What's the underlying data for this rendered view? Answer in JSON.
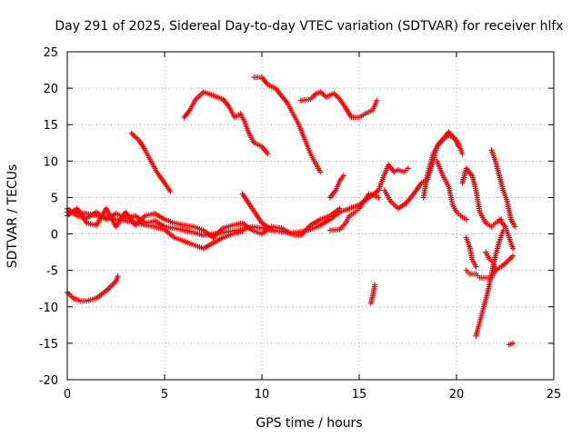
{
  "chart_data": {
    "type": "scatter",
    "title": "Day 291 of 2025, Sidereal Day-to-day VTEC variation (SDTVAR) for receiver hlfx",
    "xlabel": "GPS time / hours",
    "ylabel": "SDTVAR / TECUs",
    "xlim": [
      0,
      25
    ],
    "ylim": [
      -20,
      25
    ],
    "xticks": [
      0,
      5,
      10,
      15,
      20,
      25
    ],
    "yticks": [
      -20,
      -15,
      -10,
      -5,
      0,
      5,
      10,
      15,
      20,
      25
    ],
    "grid": true,
    "marker": "+",
    "color": "#ff0000",
    "series": [
      {
        "points": [
          [
            0,
            3.5
          ],
          [
            0.5,
            2.5
          ],
          [
            1,
            2.2
          ],
          [
            1.5,
            3
          ],
          [
            2,
            2
          ],
          [
            2.5,
            2.8
          ],
          [
            3,
            2.2
          ],
          [
            3.5,
            2.5
          ],
          [
            4,
            1.5
          ],
          [
            4.5,
            1.8
          ],
          [
            5,
            1
          ],
          [
            5.5,
            0.8
          ],
          [
            6,
            0.5
          ],
          [
            6.5,
            0.2
          ],
          [
            7,
            -0.2
          ],
          [
            7.5,
            0
          ],
          [
            8,
            0.2
          ],
          [
            8.5,
            0.4
          ],
          [
            9,
            0.6
          ],
          [
            9.5,
            1
          ],
          [
            10,
            0.8
          ],
          [
            10.5,
            0.5
          ],
          [
            11,
            0.3
          ],
          [
            11.5,
            0.1
          ],
          [
            12,
            0.3
          ],
          [
            12.5,
            0.6
          ],
          [
            13,
            1.2
          ],
          [
            13.5,
            2
          ],
          [
            14,
            3
          ],
          [
            14.5,
            3.5
          ],
          [
            15,
            4
          ],
          [
            15.5,
            5
          ],
          [
            16,
            6
          ]
        ]
      },
      {
        "points": [
          [
            0,
            2.5
          ],
          [
            0.5,
            3.5
          ],
          [
            1,
            1.5
          ],
          [
            1.5,
            1.2
          ],
          [
            2,
            3.5
          ],
          [
            2.5,
            1
          ],
          [
            3,
            3
          ],
          [
            3.5,
            1.2
          ],
          [
            4,
            2.5
          ],
          [
            4.5,
            2.8
          ],
          [
            5,
            2
          ],
          [
            5.5,
            1.5
          ],
          [
            6,
            1.2
          ],
          [
            6.5,
            1
          ],
          [
            7,
            0.5
          ],
          [
            7.5,
            -0.5
          ],
          [
            8,
            0.8
          ],
          [
            8.5,
            1.2
          ],
          [
            9,
            1.5
          ],
          [
            9.5,
            0.5
          ],
          [
            10,
            0
          ],
          [
            10.5,
            1
          ],
          [
            11,
            0.8
          ],
          [
            11.5,
            0
          ],
          [
            12,
            -0.2
          ],
          [
            12.5,
            1.2
          ],
          [
            13,
            2
          ],
          [
            13.5,
            2.5
          ],
          [
            14,
            3.5
          ]
        ]
      },
      {
        "points": [
          [
            0,
            3
          ],
          [
            0.5,
            3
          ],
          [
            1,
            2.8
          ],
          [
            1.5,
            2.5
          ],
          [
            2,
            2.3
          ],
          [
            2.5,
            2
          ],
          [
            3,
            1.8
          ],
          [
            3.5,
            1.6
          ],
          [
            4,
            1.2
          ],
          [
            4.5,
            1
          ],
          [
            5,
            0.6
          ],
          [
            5.5,
            -0.5
          ],
          [
            6,
            -1
          ],
          [
            6.5,
            -1.5
          ],
          [
            7,
            -2
          ],
          [
            7.5,
            -1.2
          ],
          [
            8,
            -0.5
          ],
          [
            8.5,
            0
          ],
          [
            9,
            0.4
          ]
        ]
      },
      {
        "points": [
          [
            0,
            -8
          ],
          [
            0.3,
            -8.8
          ],
          [
            0.7,
            -9.2
          ],
          [
            1,
            -9.2
          ],
          [
            1.5,
            -8.8
          ],
          [
            2,
            -7.8
          ],
          [
            2.5,
            -6.5
          ],
          [
            2.6,
            -5.8
          ]
        ]
      },
      {
        "points": [
          [
            3.3,
            13.8
          ],
          [
            3.7,
            12.8
          ],
          [
            4,
            11.5
          ],
          [
            4.3,
            10
          ],
          [
            4.6,
            8.5
          ],
          [
            5,
            7
          ],
          [
            5.3,
            5.8
          ]
        ]
      },
      {
        "points": [
          [
            6,
            16
          ],
          [
            6.3,
            17
          ],
          [
            6.6,
            18.5
          ],
          [
            7,
            19.5
          ],
          [
            7.5,
            19
          ],
          [
            8,
            18.5
          ],
          [
            8.3,
            17.5
          ],
          [
            8.6,
            16
          ],
          [
            8.9,
            16.5
          ],
          [
            9.1,
            15.5
          ],
          [
            9.3,
            14
          ],
          [
            9.6,
            12.5
          ],
          [
            10,
            12
          ],
          [
            10.3,
            11
          ]
        ]
      },
      {
        "points": [
          [
            9.6,
            21.5
          ],
          [
            10,
            21.5
          ],
          [
            10.3,
            20.5
          ],
          [
            10.7,
            20
          ],
          [
            11,
            19
          ],
          [
            11.3,
            18
          ],
          [
            11.6,
            16.5
          ],
          [
            11.9,
            15
          ],
          [
            12.2,
            13
          ],
          [
            12.5,
            11
          ],
          [
            12.8,
            9.5
          ],
          [
            13,
            8.5
          ]
        ]
      },
      {
        "points": [
          [
            12,
            18.3
          ],
          [
            12.5,
            18.5
          ],
          [
            12.8,
            19.3
          ],
          [
            13,
            19.5
          ],
          [
            13.3,
            18.8
          ],
          [
            13.7,
            19.3
          ],
          [
            14,
            18.5
          ],
          [
            14.3,
            17.3
          ],
          [
            14.6,
            16
          ],
          [
            15,
            16
          ],
          [
            15.3,
            16.5
          ],
          [
            15.7,
            17
          ],
          [
            15.9,
            18.3
          ]
        ]
      },
      {
        "points": [
          [
            9,
            5.5
          ],
          [
            9.5,
            3.5
          ],
          [
            10,
            1.5
          ],
          [
            10.5,
            0.6
          ]
        ]
      },
      {
        "points": [
          [
            13.5,
            0.5
          ],
          [
            14,
            0.6
          ],
          [
            14.3,
            1.5
          ],
          [
            14.5,
            2.5
          ],
          [
            14.8,
            3
          ],
          [
            15,
            3.5
          ],
          [
            15.5,
            5.5
          ],
          [
            16,
            5
          ]
        ]
      },
      {
        "points": [
          [
            13.5,
            5
          ],
          [
            13.8,
            6
          ],
          [
            14,
            7.3
          ],
          [
            14.2,
            8
          ]
        ]
      },
      {
        "points": [
          [
            15.6,
            -9.5
          ],
          [
            15.7,
            -8.5
          ],
          [
            15.8,
            -7
          ]
        ]
      },
      {
        "points": [
          [
            16,
            6
          ],
          [
            16.2,
            7.5
          ],
          [
            16.5,
            9.5
          ],
          [
            16.8,
            8.5
          ],
          [
            17,
            8.8
          ],
          [
            17.3,
            8.5
          ],
          [
            17.5,
            9
          ]
        ]
      },
      {
        "points": [
          [
            16.3,
            6
          ],
          [
            16.6,
            4.5
          ],
          [
            17,
            3.5
          ],
          [
            17.4,
            4.2
          ],
          [
            17.8,
            5.5
          ],
          [
            18.2,
            7
          ],
          [
            18.5,
            7.5
          ],
          [
            18.8,
            10
          ],
          [
            19,
            12
          ],
          [
            19.3,
            13
          ],
          [
            19.6,
            14
          ],
          [
            19.9,
            13
          ],
          [
            20.1,
            12.5
          ],
          [
            20.3,
            11
          ]
        ]
      },
      {
        "points": [
          [
            18.3,
            5
          ],
          [
            18.5,
            8
          ],
          [
            18.8,
            11
          ],
          [
            19.1,
            12.5
          ],
          [
            19.3,
            13
          ],
          [
            19.6,
            13.5
          ],
          [
            19.9,
            13.2
          ],
          [
            20.1,
            12
          ]
        ]
      },
      {
        "points": [
          [
            19,
            10
          ],
          [
            19.3,
            8
          ],
          [
            19.6,
            6.5
          ],
          [
            19.8,
            4
          ],
          [
            20,
            3
          ],
          [
            20.2,
            2.5
          ],
          [
            20.5,
            2
          ]
        ]
      },
      {
        "points": [
          [
            20.5,
            -5
          ],
          [
            20.7,
            -5.5
          ],
          [
            21,
            -5.5
          ],
          [
            21.2,
            -6
          ],
          [
            21.5,
            -6
          ],
          [
            21.8,
            -6
          ],
          [
            22,
            -5
          ]
        ]
      },
      {
        "points": [
          [
            20.5,
            -0.5
          ],
          [
            20.7,
            -2
          ],
          [
            20.8,
            -3.5
          ],
          [
            21,
            -4.5
          ]
        ]
      },
      {
        "points": [
          [
            20.3,
            7
          ],
          [
            20.5,
            9
          ],
          [
            20.8,
            8
          ],
          [
            21,
            6
          ],
          [
            21.2,
            3
          ],
          [
            21.5,
            1.5
          ],
          [
            21.8,
            1
          ],
          [
            22,
            1.5
          ],
          [
            22.3,
            2
          ]
        ]
      },
      {
        "points": [
          [
            21,
            -14
          ],
          [
            21.2,
            -12
          ],
          [
            21.4,
            -10
          ],
          [
            21.6,
            -8
          ],
          [
            21.8,
            -5.5
          ],
          [
            22,
            -3
          ],
          [
            22.2,
            -1
          ],
          [
            22.4,
            0.5
          ]
        ]
      },
      {
        "points": [
          [
            21.5,
            -2.5
          ],
          [
            21.7,
            -3.5
          ],
          [
            21.9,
            -4
          ],
          [
            22,
            -5
          ],
          [
            22.3,
            -4.5
          ],
          [
            22.6,
            -3.8
          ],
          [
            22.9,
            -3
          ]
        ]
      },
      {
        "points": [
          [
            21.8,
            11.5
          ],
          [
            22,
            10
          ],
          [
            22.2,
            8
          ],
          [
            22.4,
            6
          ],
          [
            22.6,
            4.5
          ],
          [
            22.8,
            2
          ],
          [
            23,
            1
          ]
        ]
      },
      {
        "points": [
          [
            22.2,
            2
          ],
          [
            22.5,
            1
          ],
          [
            22.7,
            -0.5
          ],
          [
            22.9,
            -2
          ]
        ]
      },
      {
        "points": [
          [
            22.7,
            -15.2
          ],
          [
            22.9,
            -15
          ]
        ]
      }
    ]
  }
}
